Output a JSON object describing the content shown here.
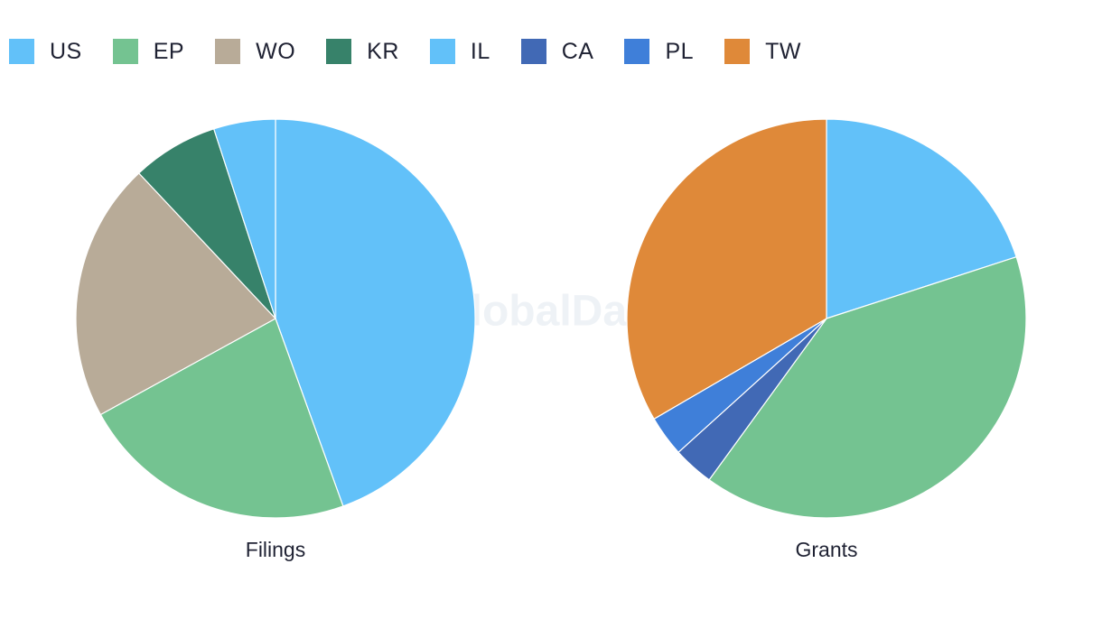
{
  "watermark": "GlobalData",
  "legend": [
    {
      "name": "US",
      "color": "#62c1f9"
    },
    {
      "name": "EP",
      "color": "#74c391"
    },
    {
      "name": "WO",
      "color": "#b8ab98"
    },
    {
      "name": "KR",
      "color": "#37826a"
    },
    {
      "name": "IL",
      "color": "#62c1f9"
    },
    {
      "name": "CA",
      "color": "#4169b5"
    },
    {
      "name": "PL",
      "color": "#3f7fd9"
    },
    {
      "name": "TW",
      "color": "#df8939"
    }
  ],
  "chart_data": [
    {
      "type": "pie",
      "title": "Filings",
      "slices": [
        {
          "label": "US",
          "value": 44.5,
          "color": "#62c1f9"
        },
        {
          "label": "EP",
          "value": 22.5,
          "color": "#74c391"
        },
        {
          "label": "WO",
          "value": 21.0,
          "color": "#b8ab98"
        },
        {
          "label": "KR",
          "value": 7.0,
          "color": "#37826a"
        },
        {
          "label": "IL",
          "value": 5.0,
          "color": "#62c1f9"
        }
      ]
    },
    {
      "type": "pie",
      "title": "Grants",
      "slices": [
        {
          "label": "US",
          "value": 20.0,
          "color": "#62c1f9"
        },
        {
          "label": "EP",
          "value": 40.0,
          "color": "#74c391"
        },
        {
          "label": "CA",
          "value": 3.3,
          "color": "#4169b5"
        },
        {
          "label": "PL",
          "value": 3.3,
          "color": "#3f7fd9"
        },
        {
          "label": "TW",
          "value": 33.4,
          "color": "#df8939"
        }
      ]
    }
  ]
}
